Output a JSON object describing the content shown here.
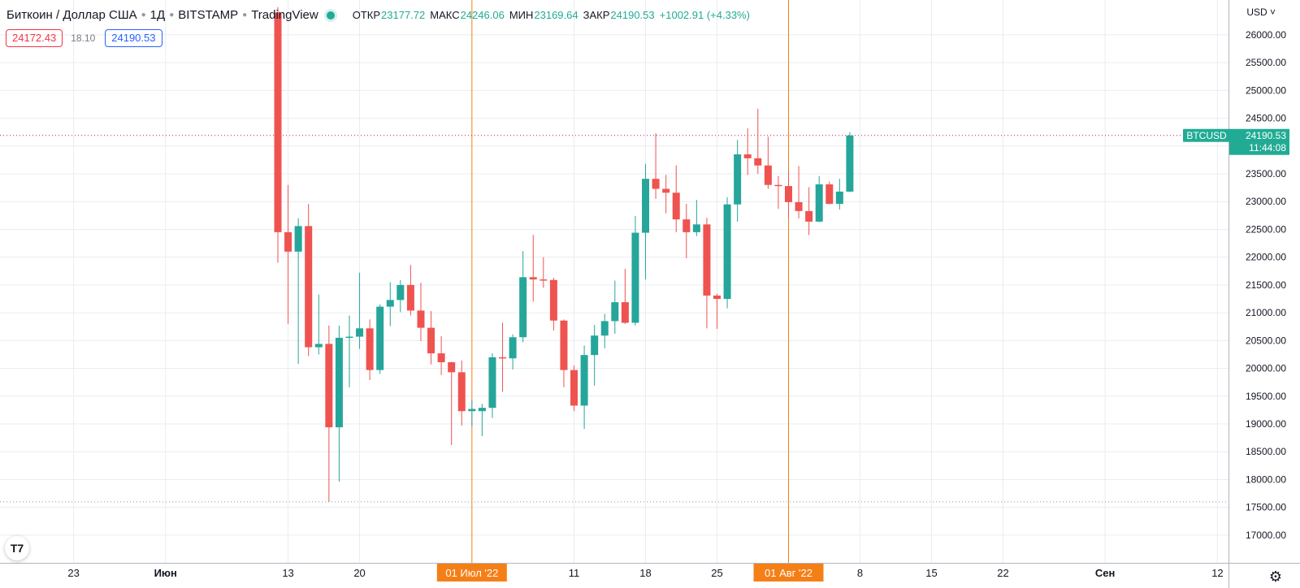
{
  "header": {
    "symbol": "Биткоин / Доллар США",
    "interval": "1Д",
    "exchange": "BITSTAMP",
    "provider": "TradingView",
    "open_label": "ОТКР",
    "open": "23177.72",
    "high_label": "МАКС",
    "high": "24246.06",
    "low_label": "МИН",
    "low": "23169.64",
    "close_label": "ЗАКР",
    "close": "24190.53",
    "change": "+1002.91 (+4.33%)"
  },
  "trade": {
    "sell": "24172.43",
    "spread": "18.10",
    "buy": "24190.53"
  },
  "currency": "USD",
  "logo_text": "T7",
  "colors": {
    "up": "#26a69a",
    "down": "#ef5350",
    "marker": "#f57f17",
    "tag": "#22ab94",
    "grid": "#e9ecf1"
  },
  "chart_data": {
    "type": "candlestick",
    "ylim": [
      16700,
      26400
    ],
    "y_ticks": [
      17000,
      17500,
      18000,
      18500,
      19000,
      19500,
      20000,
      20500,
      21000,
      21500,
      22000,
      22500,
      23000,
      23500,
      24000,
      24500,
      25000,
      25500,
      26000
    ],
    "x_ticks": [
      {
        "label": "23",
        "day": -7
      },
      {
        "label": "Июн",
        "day": 2
      },
      {
        "label": "13",
        "day": 14
      },
      {
        "label": "20",
        "day": 21
      },
      {
        "label": "01 Июл '22",
        "day": 32,
        "highlight": true
      },
      {
        "label": "11",
        "day": 42
      },
      {
        "label": "18",
        "day": 49
      },
      {
        "label": "25",
        "day": 56
      },
      {
        "label": "01 Авг '22",
        "day": 63,
        "highlight": true
      },
      {
        "label": "8",
        "day": 70
      },
      {
        "label": "15",
        "day": 77
      },
      {
        "label": "22",
        "day": 84
      },
      {
        "label": "Сен",
        "day": 94
      },
      {
        "label": "12",
        "day": 105
      }
    ],
    "candles": [
      {
        "day": 13,
        "o": 26400,
        "h": 26500,
        "l": 21900,
        "c": 22450
      },
      {
        "day": 14,
        "o": 22450,
        "h": 23300,
        "l": 20800,
        "c": 22100
      },
      {
        "day": 15,
        "o": 22100,
        "h": 22700,
        "l": 20080,
        "c": 22560
      },
      {
        "day": 16,
        "o": 22560,
        "h": 22960,
        "l": 20220,
        "c": 20380
      },
      {
        "day": 17,
        "o": 20380,
        "h": 21330,
        "l": 20250,
        "c": 20440
      },
      {
        "day": 18,
        "o": 20440,
        "h": 20770,
        "l": 17600,
        "c": 18940
      },
      {
        "day": 19,
        "o": 18940,
        "h": 20770,
        "l": 17960,
        "c": 20550
      },
      {
        "day": 20,
        "o": 20550,
        "h": 20950,
        "l": 19660,
        "c": 20570
      },
      {
        "day": 21,
        "o": 20570,
        "h": 21720,
        "l": 20350,
        "c": 20720
      },
      {
        "day": 22,
        "o": 20720,
        "h": 20880,
        "l": 19790,
        "c": 19970
      },
      {
        "day": 23,
        "o": 19970,
        "h": 21150,
        "l": 19900,
        "c": 21110
      },
      {
        "day": 24,
        "o": 21110,
        "h": 21550,
        "l": 20760,
        "c": 21230
      },
      {
        "day": 25,
        "o": 21230,
        "h": 21590,
        "l": 21010,
        "c": 21500
      },
      {
        "day": 26,
        "o": 21500,
        "h": 21860,
        "l": 20950,
        "c": 21040
      },
      {
        "day": 27,
        "o": 21040,
        "h": 21540,
        "l": 20490,
        "c": 20730
      },
      {
        "day": 28,
        "o": 20730,
        "h": 21030,
        "l": 20070,
        "c": 20270
      },
      {
        "day": 29,
        "o": 20270,
        "h": 20580,
        "l": 19880,
        "c": 20110
      },
      {
        "day": 30,
        "o": 20110,
        "h": 20120,
        "l": 18620,
        "c": 19930
      },
      {
        "day": 31,
        "o": 19930,
        "h": 20140,
        "l": 18970,
        "c": 19230
      },
      {
        "day": 32,
        "o": 19230,
        "h": 19440,
        "l": 18960,
        "c": 19270
      },
      {
        "day": 33,
        "o": 19230,
        "h": 19360,
        "l": 18780,
        "c": 19290
      },
      {
        "day": 34,
        "o": 19290,
        "h": 20270,
        "l": 19110,
        "c": 20200
      },
      {
        "day": 35,
        "o": 20200,
        "h": 20820,
        "l": 19580,
        "c": 20180
      },
      {
        "day": 36,
        "o": 20180,
        "h": 20610,
        "l": 19980,
        "c": 20560
      },
      {
        "day": 37,
        "o": 20560,
        "h": 22110,
        "l": 20470,
        "c": 21640
      },
      {
        "day": 38,
        "o": 21640,
        "h": 22400,
        "l": 21200,
        "c": 21600
      },
      {
        "day": 39,
        "o": 21600,
        "h": 22000,
        "l": 21450,
        "c": 21590
      },
      {
        "day": 40,
        "o": 21590,
        "h": 21630,
        "l": 20680,
        "c": 20860
      },
      {
        "day": 41,
        "o": 20860,
        "h": 20880,
        "l": 19660,
        "c": 19970
      },
      {
        "day": 42,
        "o": 19970,
        "h": 20050,
        "l": 19230,
        "c": 19330
      },
      {
        "day": 43,
        "o": 19330,
        "h": 20410,
        "l": 18910,
        "c": 20240
      },
      {
        "day": 44,
        "o": 20240,
        "h": 20780,
        "l": 19690,
        "c": 20590
      },
      {
        "day": 45,
        "o": 20590,
        "h": 20980,
        "l": 20360,
        "c": 20850
      },
      {
        "day": 46,
        "o": 20850,
        "h": 21580,
        "l": 20620,
        "c": 21190
      },
      {
        "day": 47,
        "o": 21190,
        "h": 21790,
        "l": 20800,
        "c": 20820
      },
      {
        "day": 48,
        "o": 20820,
        "h": 22740,
        "l": 20770,
        "c": 22440
      },
      {
        "day": 49,
        "o": 22440,
        "h": 23680,
        "l": 21600,
        "c": 23410
      },
      {
        "day": 50,
        "o": 23410,
        "h": 24230,
        "l": 23050,
        "c": 23230
      },
      {
        "day": 51,
        "o": 23230,
        "h": 23480,
        "l": 22790,
        "c": 23160
      },
      {
        "day": 52,
        "o": 23160,
        "h": 23650,
        "l": 22450,
        "c": 22680
      },
      {
        "day": 53,
        "o": 22680,
        "h": 22960,
        "l": 21980,
        "c": 22450
      },
      {
        "day": 54,
        "o": 22450,
        "h": 23030,
        "l": 22380,
        "c": 22590
      },
      {
        "day": 55,
        "o": 22590,
        "h": 22710,
        "l": 20720,
        "c": 21310
      },
      {
        "day": 56,
        "o": 21310,
        "h": 21340,
        "l": 20710,
        "c": 21250
      },
      {
        "day": 57,
        "o": 21250,
        "h": 23080,
        "l": 21080,
        "c": 22950
      },
      {
        "day": 58,
        "o": 22950,
        "h": 24110,
        "l": 22640,
        "c": 23850
      },
      {
        "day": 59,
        "o": 23850,
        "h": 24320,
        "l": 23480,
        "c": 23780
      },
      {
        "day": 60,
        "o": 23780,
        "h": 24670,
        "l": 23500,
        "c": 23650
      },
      {
        "day": 61,
        "o": 23650,
        "h": 24170,
        "l": 23230,
        "c": 23300
      },
      {
        "day": 62,
        "o": 23300,
        "h": 23460,
        "l": 22870,
        "c": 23280
      },
      {
        "day": 63,
        "o": 23280,
        "h": 23550,
        "l": 22700,
        "c": 22990
      },
      {
        "day": 64,
        "o": 22990,
        "h": 23640,
        "l": 22700,
        "c": 22830
      },
      {
        "day": 65,
        "o": 22830,
        "h": 23260,
        "l": 22400,
        "c": 22640
      },
      {
        "day": 66,
        "o": 22640,
        "h": 23460,
        "l": 22630,
        "c": 23310
      },
      {
        "day": 67,
        "o": 23310,
        "h": 23360,
        "l": 22950,
        "c": 22960
      },
      {
        "day": 68,
        "o": 22960,
        "h": 23410,
        "l": 22860,
        "c": 23180
      },
      {
        "day": 69,
        "o": 23180,
        "h": 24250,
        "l": 23170,
        "c": 24190
      }
    ],
    "last_price": {
      "symbol": "BTCUSD",
      "value": "24190.53",
      "countdown": "11:44:08",
      "y": 24190.53
    },
    "low_line": {
      "y": 17600
    }
  }
}
